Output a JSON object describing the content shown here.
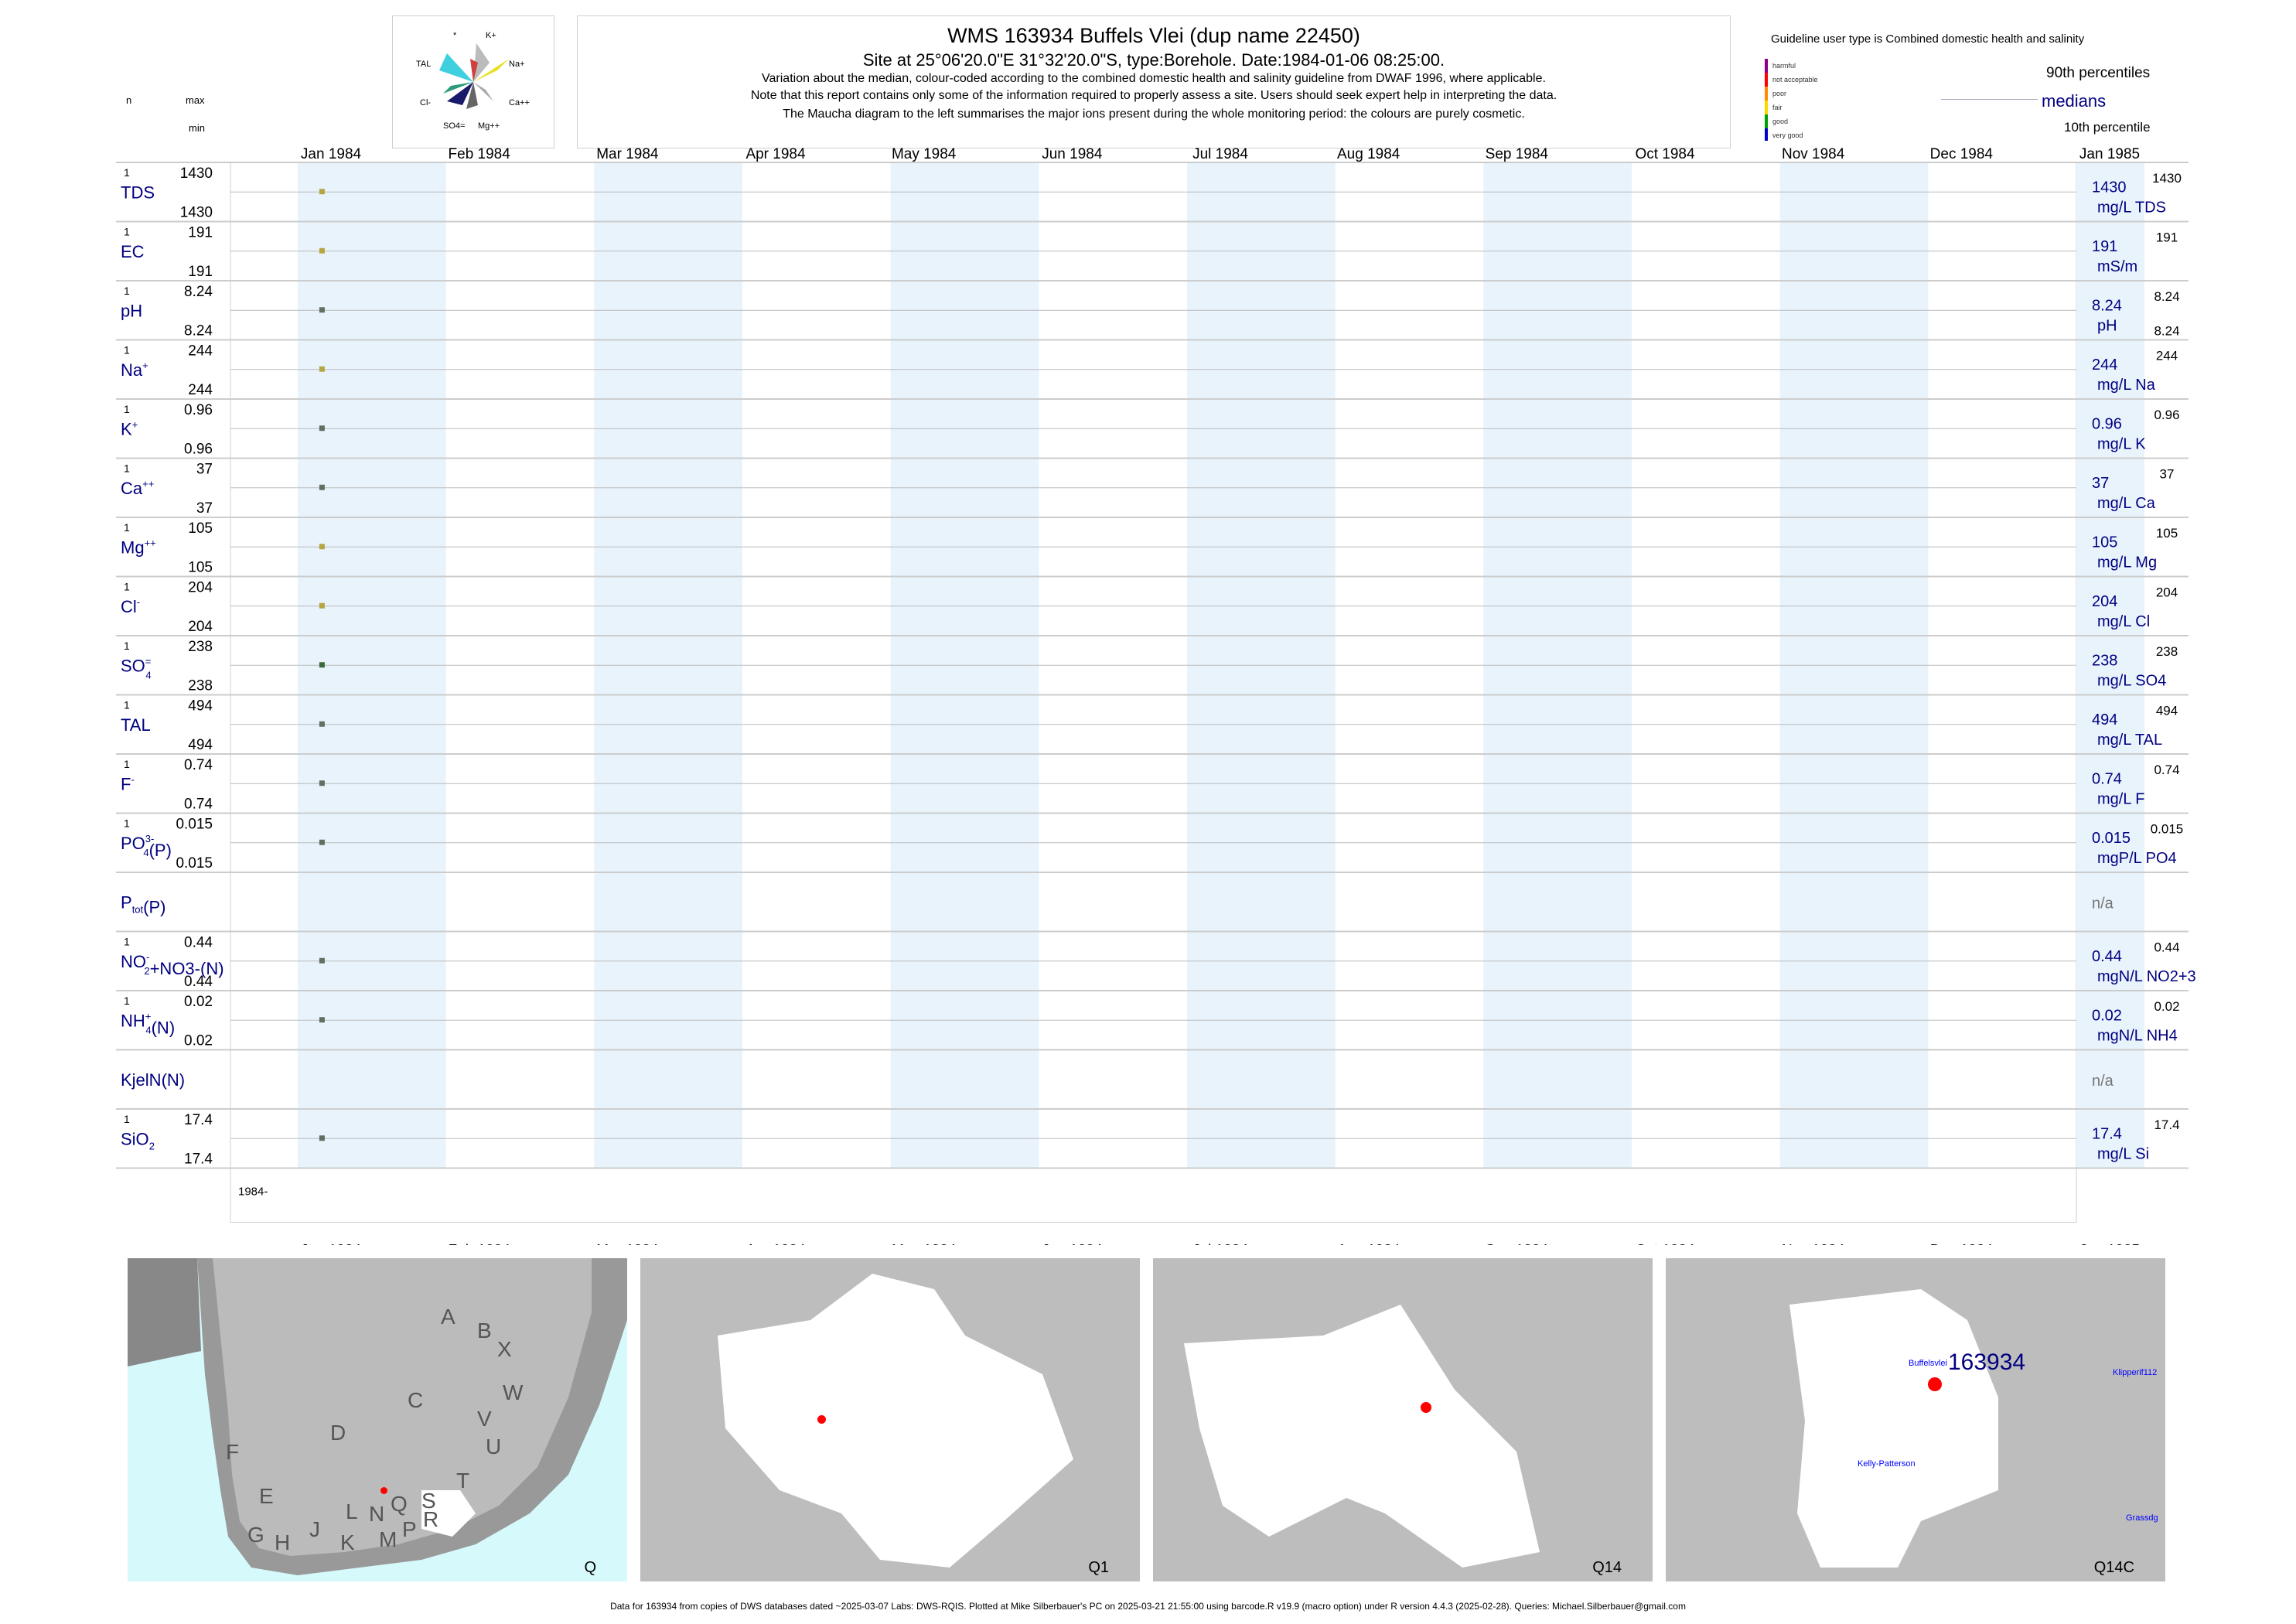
{
  "header": {
    "title": "WMS 163934  Buffels Vlei (dup name 22450)",
    "subtitle": "Site at 25°06'20.0\"E 31°32'20.0\"S, type:Borehole. Date:1984-01-06 08:25:00.",
    "line1": "Variation about the median,  colour-coded according to the combined domestic health and salinity guideline from DWAF 1996, where applicable.",
    "line2": "Note that this report contains only some of the information required to properly assess a site. Users should seek expert help in interpreting the data.",
    "line3": "The Maucha diagram to the left summarises the major ions present during the whole monitoring period: the colours are purely cosmetic."
  },
  "left_header": {
    "n": "n",
    "max": "max",
    "min": "min"
  },
  "maucha": {
    "labels": [
      "*",
      "K+",
      "TAL",
      "Na+",
      "Cl-",
      "Ca++",
      "SO4=",
      "Mg++"
    ]
  },
  "guideline": {
    "title": "Guideline user type is Combined domestic health and salinity",
    "classes": [
      {
        "label": "harmful",
        "color": "#8b008b"
      },
      {
        "label": "not acceptable",
        "color": "#ff0000"
      },
      {
        "label": "poor",
        "color": "#ff8c00"
      },
      {
        "label": "fair",
        "color": "#ffd700"
      },
      {
        "label": "good",
        "color": "#00a000"
      },
      {
        "label": "very good",
        "color": "#0000cd"
      }
    ],
    "p90": "90th percentiles",
    "medians": "medians",
    "p10": "10th percentile"
  },
  "chart_data": {
    "type": "scatter",
    "sample_date": "1984-01-06",
    "x_ticks": [
      "Jan 1984",
      "Feb 1984",
      "Mar 1984",
      "Apr 1984",
      "May 1984",
      "Jun 1984",
      "Jul 1984",
      "Aug 1984",
      "Sep 1984",
      "Oct 1984",
      "Nov 1984",
      "Dec 1984",
      "Jan 1985"
    ],
    "x_year_label": "1984-",
    "series": [
      {
        "label": "TDS",
        "n": "1",
        "max": "1430",
        "min": "1430",
        "median": "1430",
        "unit": "mg/L TDS",
        "p90": "1430",
        "p10": "",
        "value": 1430,
        "color": "#b5a642"
      },
      {
        "label": "EC",
        "n": "1",
        "max": "191",
        "min": "191",
        "median": "191",
        "unit": "mS/m",
        "p90": "191",
        "p10": "",
        "value": 191,
        "color": "#b5a642"
      },
      {
        "label": "pH",
        "n": "1",
        "max": "8.24",
        "min": "8.24",
        "median": "8.24",
        "unit": "pH",
        "p90": "8.24",
        "p10": "8.24",
        "value": 8.24,
        "color": "#607060"
      },
      {
        "label": "Na",
        "sup": "+",
        "n": "1",
        "max": "244",
        "min": "244",
        "median": "244",
        "unit": "mg/L Na",
        "p90": "244",
        "p10": "",
        "value": 244,
        "color": "#b5a642"
      },
      {
        "label": "K",
        "sup": "+",
        "n": "1",
        "max": "0.96",
        "min": "0.96",
        "median": "0.96",
        "unit": "mg/L K",
        "p90": "0.96",
        "p10": "",
        "value": 0.96,
        "color": "#607060"
      },
      {
        "label": "Ca",
        "sup": "++",
        "n": "1",
        "max": "37",
        "min": "37",
        "median": "37",
        "unit": "mg/L Ca",
        "p90": "37",
        "p10": "",
        "value": 37,
        "color": "#607060"
      },
      {
        "label": "Mg",
        "sup": "++",
        "n": "1",
        "max": "105",
        "min": "105",
        "median": "105",
        "unit": "mg/L Mg",
        "p90": "105",
        "p10": "",
        "value": 105,
        "color": "#b5a642"
      },
      {
        "label": "Cl",
        "sup": "-",
        "n": "1",
        "max": "204",
        "min": "204",
        "median": "204",
        "unit": "mg/L Cl",
        "p90": "204",
        "p10": "",
        "value": 204,
        "color": "#b5a642"
      },
      {
        "label": "SO",
        "sub": "4",
        "sup": "=",
        "n": "1",
        "max": "238",
        "min": "238",
        "median": "238",
        "unit": "mg/L SO4",
        "p90": "238",
        "p10": "",
        "value": 238,
        "color": "#3a6a3a"
      },
      {
        "label": "TAL",
        "n": "1",
        "max": "494",
        "min": "494",
        "median": "494",
        "unit": "mg/L TAL",
        "p90": "494",
        "p10": "",
        "value": 494,
        "color": "#607060"
      },
      {
        "label": "F",
        "sup": "-",
        "n": "1",
        "max": "0.74",
        "min": "0.74",
        "median": "0.74",
        "unit": "mg/L F",
        "p90": "0.74",
        "p10": "",
        "value": 0.74,
        "color": "#607060"
      },
      {
        "label": "PO",
        "sub": "4",
        "sup": "3-",
        "suffix": "(P)",
        "n": "1",
        "max": "0.015",
        "min": "0.015",
        "median": "0.015",
        "unit": "mgP/L PO4",
        "p90": "0.015",
        "p10": "",
        "value": 0.015,
        "color": "#607060"
      },
      {
        "label": "P",
        "sub": "tot",
        "suffix": "(P)",
        "n": "",
        "max": "",
        "min": "",
        "median": "n/a",
        "unit": "",
        "p90": "",
        "p10": "",
        "value": null,
        "color": "#607060"
      },
      {
        "label": "NO",
        "sub": "2",
        "sup": "-",
        "suffix": "+NO3-(N)",
        "n": "1",
        "max": "0.44",
        "min": "0.44",
        "median": "0.44",
        "unit": "mgN/L NO2+3",
        "p90": "0.44",
        "p10": "",
        "value": 0.44,
        "color": "#607060"
      },
      {
        "label": "NH",
        "sub": "4",
        "sup": "+",
        "suffix": "(N)",
        "n": "1",
        "max": "0.02",
        "min": "0.02",
        "median": "0.02",
        "unit": "mgN/L NH4",
        "p90": "0.02",
        "p10": "",
        "value": 0.02,
        "color": "#607060"
      },
      {
        "label": "KjelN(N)",
        "n": "",
        "max": "",
        "min": "",
        "median": "n/a",
        "unit": "",
        "p90": "",
        "p10": "",
        "value": null,
        "color": "#607060"
      },
      {
        "label": "SiO",
        "sub": "2",
        "n": "1",
        "max": "17.4",
        "min": "17.4",
        "median": "17.4",
        "unit": "mg/L Si",
        "p90": "17.4",
        "p10": "",
        "value": 17.4,
        "color": "#607060"
      }
    ]
  },
  "maps": [
    {
      "label": "Q",
      "letters": [
        "A",
        "B",
        "X",
        "W",
        "C",
        "V",
        "D",
        "U",
        "F",
        "T",
        "E",
        "Q",
        "S",
        "L",
        "N",
        "R",
        "G",
        "H",
        "J",
        "K",
        "M",
        "P"
      ]
    },
    {
      "label": "Q1"
    },
    {
      "label": "Q14"
    },
    {
      "label": "Q14C",
      "site_id": "163934",
      "places": [
        "Buffelsvlei",
        "Klipperif112",
        "Kelly-Patterson",
        "Grassdg"
      ]
    }
  ],
  "footer": "Data for 163934 from copies of DWS databases dated ~2025-03-07 Labs: DWS-RQIS. Plotted at Mike Silberbauer's PC on 2025-03-21 21:55:00 using barcode.R v19.9 (macro option) under R version 4.4.3 (2025-02-28). Queries: Michael.Silberbauer@gmail.com"
}
